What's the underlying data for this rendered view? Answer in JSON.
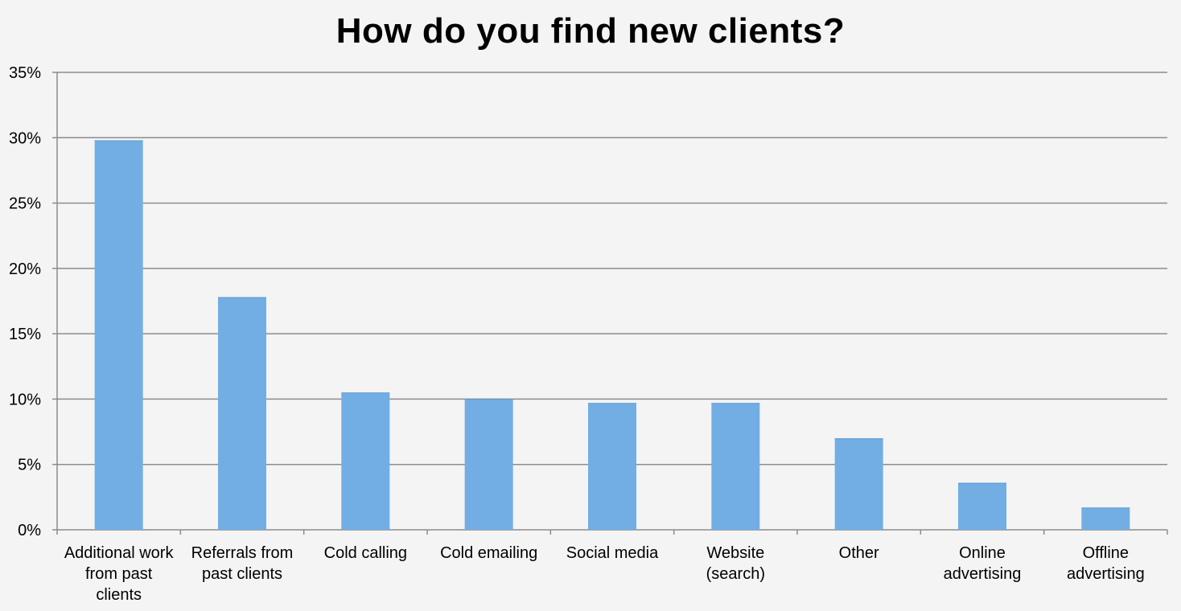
{
  "chart_data": {
    "type": "bar",
    "title": "How do you find new clients?",
    "xlabel": "",
    "ylabel": "",
    "categories": [
      "Additional work from past clients",
      "Referrals from past clients",
      "Cold calling",
      "Cold emailing",
      "Social media",
      "Website (search)",
      "Other",
      "Online advertising",
      "Offline advertising"
    ],
    "category_label_lines": [
      [
        "Additional work",
        "from past",
        "clients"
      ],
      [
        "Referrals from",
        "past clients"
      ],
      [
        "Cold calling"
      ],
      [
        "Cold emailing"
      ],
      [
        "Social media"
      ],
      [
        "Website",
        "(search)"
      ],
      [
        "Other"
      ],
      [
        "Online",
        "advertising"
      ],
      [
        "Offline",
        "advertising"
      ]
    ],
    "values": [
      29.8,
      17.8,
      10.5,
      10.0,
      9.7,
      9.7,
      7.0,
      3.6,
      1.7
    ],
    "ylim": [
      0,
      35
    ],
    "yticks": [
      0,
      5,
      10,
      15,
      20,
      25,
      30,
      35
    ],
    "ytick_labels": [
      "0%",
      "5%",
      "10%",
      "15%",
      "20%",
      "25%",
      "30%",
      "35%"
    ],
    "grid": true,
    "legend": "none",
    "bar_color": "#72aee3",
    "grid_color": "#8c8c8c"
  }
}
